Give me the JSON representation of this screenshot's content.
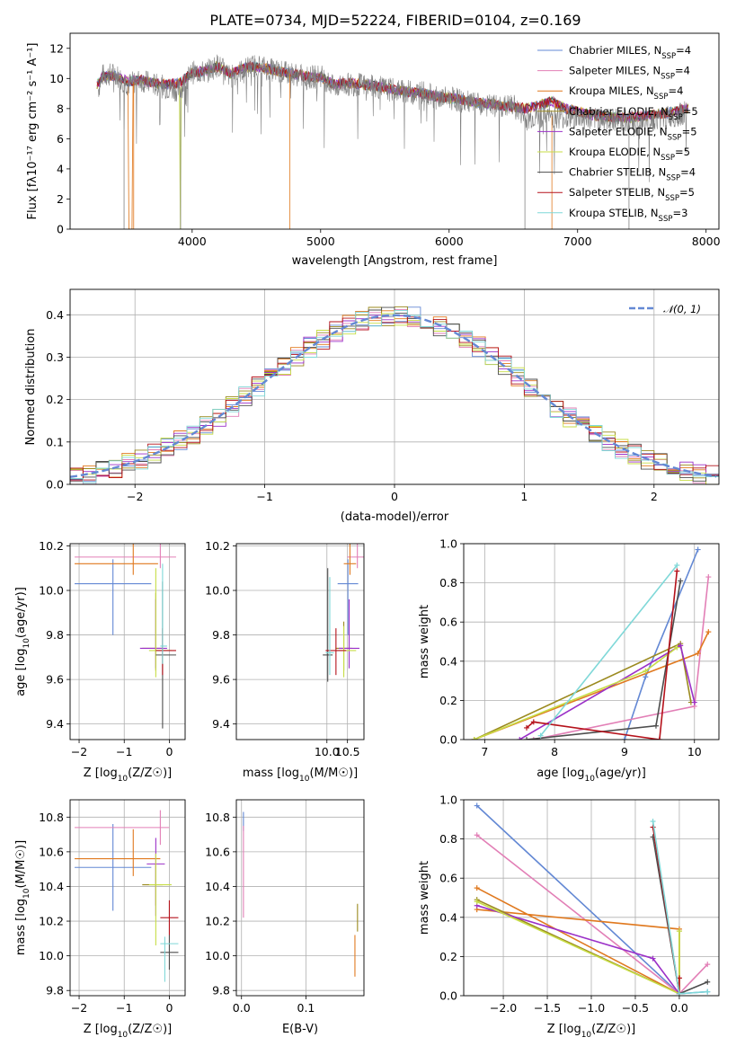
{
  "title": "PLATE=0734, MJD=52224, FIBERID=0104, z=0.169",
  "colors": [
    "#6388d4",
    "#e27fb6",
    "#e0791f",
    "#9b8a1f",
    "#9b30c8",
    "#c7dd46",
    "#4d4d4d",
    "#b5121b",
    "#7fd8d8"
  ],
  "legend": [
    {
      "prefix": "Chabrier MILES, N",
      "sub": "SSP",
      "suffix": "=4"
    },
    {
      "prefix": "Salpeter MILES, N",
      "sub": "SSP",
      "suffix": "=4"
    },
    {
      "prefix": "Kroupa MILES, N",
      "sub": "SSP",
      "suffix": "=4"
    },
    {
      "prefix": "Chabrier ELODIE, N",
      "sub": "SSP",
      "suffix": "=5"
    },
    {
      "prefix": "Salpeter ELODIE, N",
      "sub": "SSP",
      "suffix": "=5"
    },
    {
      "prefix": "Kroupa ELODIE, N",
      "sub": "SSP",
      "suffix": "=5"
    },
    {
      "prefix": "Chabrier STELIB, N",
      "sub": "SSP",
      "suffix": "=4"
    },
    {
      "prefix": "Salpeter STELIB, N",
      "sub": "SSP",
      "suffix": "=5"
    },
    {
      "prefix": "Kroupa STELIB, N",
      "sub": "SSP",
      "suffix": "=3"
    }
  ],
  "normal_legend": "𝒩(0, 1)",
  "chart_data": [
    {
      "id": "spectrum",
      "type": "line",
      "xlabel": "wavelength [Angstrom, rest frame]",
      "ylabel": "Flux [fλ10⁻¹⁷ erg cm⁻² s⁻¹ A⁻¹]",
      "xlim": [
        3050,
        8100
      ],
      "ylim": [
        0,
        13
      ],
      "xticks": [
        4000,
        5000,
        6000,
        7000,
        8000
      ],
      "yticks": [
        0,
        2,
        4,
        6,
        8,
        10,
        12
      ],
      "grid": false,
      "legend_position": "right",
      "data_continuum": [
        [
          3270,
          9.3
        ],
        [
          3300,
          10.2
        ],
        [
          3400,
          10.3
        ],
        [
          3500,
          9.6
        ],
        [
          3600,
          9.9
        ],
        [
          3700,
          9.6
        ],
        [
          3800,
          9.4
        ],
        [
          3900,
          9.2
        ],
        [
          4000,
          10.4
        ],
        [
          4100,
          10.4
        ],
        [
          4200,
          10.9
        ],
        [
          4300,
          10.1
        ],
        [
          4400,
          10.6
        ],
        [
          4500,
          10.9
        ],
        [
          4600,
          10.6
        ],
        [
          4700,
          10.4
        ],
        [
          4800,
          10.3
        ],
        [
          4900,
          10.0
        ],
        [
          5000,
          10.2
        ],
        [
          5100,
          9.4
        ],
        [
          5200,
          9.6
        ],
        [
          5300,
          9.6
        ],
        [
          5400,
          9.5
        ],
        [
          5500,
          9.3
        ],
        [
          5600,
          9.2
        ],
        [
          5700,
          9.1
        ],
        [
          5800,
          9.1
        ],
        [
          5900,
          8.7
        ],
        [
          6000,
          8.7
        ],
        [
          6100,
          8.5
        ],
        [
          6200,
          8.3
        ],
        [
          6300,
          8.2
        ],
        [
          6400,
          8.1
        ],
        [
          6500,
          8.2
        ],
        [
          6600,
          7.3
        ],
        [
          6700,
          7.5
        ],
        [
          6800,
          7.5
        ],
        [
          6900,
          7.4
        ],
        [
          7000,
          7.4
        ],
        [
          7100,
          7.3
        ],
        [
          7200,
          7.2
        ],
        [
          7300,
          7.3
        ],
        [
          7400,
          7.2
        ],
        [
          7500,
          7.0
        ],
        [
          7600,
          7.3
        ],
        [
          7700,
          7.4
        ],
        [
          7800,
          7.6
        ],
        [
          7850,
          7.8
        ]
      ],
      "model_continuum": [
        [
          3260,
          9.6
        ],
        [
          3300,
          10.1
        ],
        [
          3400,
          10.2
        ],
        [
          3500,
          9.8
        ],
        [
          3600,
          9.9
        ],
        [
          3700,
          9.7
        ],
        [
          3800,
          9.6
        ],
        [
          3900,
          9.7
        ],
        [
          4000,
          10.4
        ],
        [
          4100,
          10.5
        ],
        [
          4200,
          10.8
        ],
        [
          4300,
          10.3
        ],
        [
          4400,
          10.7
        ],
        [
          4500,
          10.8
        ],
        [
          4600,
          10.6
        ],
        [
          4700,
          10.4
        ],
        [
          4800,
          10.3
        ],
        [
          4900,
          10.1
        ],
        [
          5000,
          10.1
        ],
        [
          5100,
          9.6
        ],
        [
          5200,
          9.7
        ],
        [
          5300,
          9.6
        ],
        [
          5400,
          9.5
        ],
        [
          5500,
          9.4
        ],
        [
          5600,
          9.2
        ],
        [
          5700,
          9.1
        ],
        [
          5800,
          9.0
        ],
        [
          5900,
          8.8
        ],
        [
          6000,
          8.7
        ],
        [
          6100,
          8.6
        ],
        [
          6200,
          8.4
        ],
        [
          6300,
          8.3
        ],
        [
          6400,
          8.2
        ],
        [
          6500,
          8.1
        ],
        [
          6600,
          8.0
        ],
        [
          6700,
          8.2
        ],
        [
          6800,
          8.5
        ],
        [
          6900,
          8.0
        ],
        [
          7000,
          7.8
        ],
        [
          7100,
          7.6
        ],
        [
          7200,
          7.5
        ],
        [
          7300,
          7.4
        ],
        [
          7400,
          7.4
        ],
        [
          7500,
          7.5
        ],
        [
          7600,
          7.6
        ],
        [
          7700,
          7.7
        ],
        [
          7800,
          7.9
        ],
        [
          7850,
          8.0
        ]
      ]
    },
    {
      "id": "residuals",
      "type": "line",
      "xlabel": "(data-model)/error",
      "ylabel": "Normed distribution",
      "xlim": [
        -2.5,
        2.5
      ],
      "ylim": [
        0,
        0.46
      ],
      "xticks": [
        -2,
        -1,
        0,
        1,
        2
      ],
      "yticks": [
        0.0,
        0.1,
        0.2,
        0.3,
        0.4
      ],
      "grid": true,
      "legend_position": "upper right",
      "bin_width": 0.1
    },
    {
      "id": "age_vs_Z",
      "type": "scatter",
      "xlabel_main": "Z [log",
      "xlabel_sub": "10",
      "xlabel_rest": "(Z/Z☉)]",
      "ylabel_main": "age  [log",
      "ylabel_sub": "10",
      "ylabel_rest": "(age/yr)]",
      "xlim": [
        -2.2,
        0.35
      ],
      "ylim": [
        9.33,
        10.21
      ],
      "xticks": [
        -2,
        -1,
        0
      ],
      "yticks": [
        9.4,
        9.6,
        9.8,
        10.0,
        10.2
      ],
      "grid": true,
      "points": [
        [
          -1.25,
          10.03,
          0.85,
          0.85,
          0.23,
          0.11
        ],
        [
          -0.2,
          10.15,
          1.9,
          0.35,
          0.05,
          0.23
        ],
        [
          -0.8,
          10.12,
          1.3,
          0.55,
          0.05,
          0.19
        ],
        [
          -0.3,
          9.74,
          0.3,
          0.15,
          0.1,
          0.25
        ],
        [
          -0.3,
          9.74,
          0.35,
          0.25,
          0.09,
          0.22
        ],
        [
          -0.3,
          9.73,
          0.15,
          0.35,
          0.12,
          0.37
        ],
        [
          -0.15,
          9.71,
          0.15,
          0.3,
          0.33,
          0.33
        ],
        [
          -0.15,
          9.73,
          0.15,
          0.3,
          0.11,
          0.1
        ],
        [
          -0.15,
          9.75,
          0.05,
          0.1,
          0.08,
          0.37
        ]
      ]
    },
    {
      "id": "age_vs_mass",
      "type": "scatter",
      "xlabel_main": "mass [log",
      "xlabel_sub": "10",
      "xlabel_rest": "(M/M☉)]",
      "ylabel_main": "",
      "ylabel_sub": "",
      "ylabel_rest": "",
      "xlim": [
        7.8,
        10.9
      ],
      "ylim": [
        9.33,
        10.21
      ],
      "xticks": [
        10.0,
        10.5
      ],
      "yticks": [
        9.4,
        9.6,
        9.8,
        10.0,
        10.2
      ],
      "grid": true,
      "points": [
        [
          10.51,
          10.03,
          0.25,
          0.25,
          0.23,
          0.11
        ],
        [
          10.74,
          10.15,
          0.25,
          0.25,
          0.05,
          0.32
        ],
        [
          10.56,
          10.12,
          0.15,
          0.15,
          0.05,
          0.25
        ],
        [
          10.41,
          9.74,
          0.2,
          0.2,
          0.1,
          0.12
        ],
        [
          10.54,
          9.74,
          0.25,
          0.25,
          0.09,
          0.22
        ],
        [
          10.41,
          9.73,
          0.15,
          0.3,
          0.12,
          0.11
        ],
        [
          10.02,
          9.71,
          0.12,
          0.12,
          0.12,
          0.39
        ],
        [
          10.22,
          9.73,
          0.25,
          0.25,
          0.11,
          0.1
        ],
        [
          10.07,
          9.72,
          0.1,
          0.1,
          0.1,
          0.34
        ]
      ]
    },
    {
      "id": "weight_vs_age",
      "type": "line",
      "xlabel_main": "age  [log",
      "xlabel_sub": "10",
      "xlabel_rest": "(age/yr)]",
      "ylabel": "mass weight",
      "xlim": [
        6.7,
        10.35
      ],
      "ylim": [
        0,
        1.0
      ],
      "xticks": [
        7,
        8,
        9,
        10
      ],
      "yticks": [
        0.0,
        0.2,
        0.4,
        0.6,
        0.8,
        1.0
      ],
      "grid": true,
      "series": [
        [
          [
            9.0,
            0.0
          ],
          [
            9.3,
            0.32
          ],
          [
            10.05,
            0.97
          ]
        ],
        [
          [
            7.7,
            0.0
          ],
          [
            10.0,
            0.17
          ],
          [
            10.2,
            0.83
          ]
        ],
        [
          [
            6.85,
            0.0
          ],
          [
            10.05,
            0.44
          ],
          [
            10.2,
            0.55
          ]
        ],
        [
          [
            6.85,
            0.0
          ],
          [
            9.8,
            0.49
          ],
          [
            9.95,
            0.19
          ]
        ],
        [
          [
            7.5,
            0.0
          ],
          [
            9.8,
            0.48
          ],
          [
            10.0,
            0.19
          ]
        ],
        [
          [
            6.85,
            0.0
          ],
          [
            9.3,
            0.35
          ],
          [
            9.75,
            0.47
          ]
        ],
        [
          [
            7.6,
            0.0
          ],
          [
            9.45,
            0.07
          ],
          [
            9.8,
            0.81
          ]
        ],
        [
          [
            7.6,
            0.06
          ],
          [
            7.7,
            0.09
          ],
          [
            9.5,
            0.0
          ],
          [
            9.75,
            0.86
          ]
        ],
        [
          [
            7.8,
            0.02
          ],
          [
            9.75,
            0.89
          ]
        ]
      ]
    },
    {
      "id": "mass_vs_Z",
      "type": "scatter",
      "xlabel_main": "Z [log",
      "xlabel_sub": "10",
      "xlabel_rest": "(Z/Z☉)]",
      "ylabel_main": "mass [log",
      "ylabel_sub": "10",
      "ylabel_rest": "(M/M☉)]",
      "xlim": [
        -2.2,
        0.35
      ],
      "ylim": [
        9.77,
        10.9
      ],
      "xticks": [
        -2,
        -1,
        0
      ],
      "yticks": [
        9.8,
        10.0,
        10.2,
        10.4,
        10.6,
        10.8
      ],
      "grid": true,
      "points": [
        [
          -1.25,
          10.51,
          0.85,
          0.85,
          0.25,
          0.25
        ],
        [
          -0.2,
          10.74,
          1.9,
          0.2,
          0.1,
          0.1
        ],
        [
          -0.8,
          10.56,
          1.3,
          0.6,
          0.1,
          0.17
        ],
        [
          -0.3,
          10.41,
          0.3,
          0.15,
          0.12,
          0.12
        ],
        [
          -0.3,
          10.53,
          0.2,
          0.2,
          0.3,
          0.15
        ],
        [
          -0.3,
          10.41,
          0.15,
          0.35,
          0.35,
          0.18
        ],
        [
          0.0,
          10.02,
          0.2,
          0.2,
          0.1,
          0.1
        ],
        [
          0.0,
          10.22,
          0.2,
          0.2,
          0.1,
          0.1
        ],
        [
          -0.1,
          10.07,
          0.1,
          0.3,
          0.22,
          0.04
        ]
      ]
    },
    {
      "id": "mass_vs_ebv",
      "type": "scatter",
      "xlabel": "E(B-V)",
      "xlim": [
        -0.008,
        0.19
      ],
      "ylim": [
        9.77,
        10.9
      ],
      "xticks": [
        0.0,
        0.1
      ],
      "yticks": [
        9.8,
        10.0,
        10.2,
        10.4,
        10.6,
        10.8
      ],
      "grid": true,
      "points": [
        [
          0.003,
          10.78,
          0,
          0,
          0.06,
          0.05
        ],
        [
          0.003,
          10.5,
          0,
          0,
          0.28,
          0.25
        ],
        [
          0.176,
          10.0,
          0,
          0,
          0.12,
          0.12
        ],
        [
          0.18,
          10.22,
          0,
          0,
          0.08,
          0.08
        ]
      ]
    },
    {
      "id": "weight_vs_Z",
      "type": "line",
      "xlabel_main": "Z [log",
      "xlabel_sub": "10",
      "xlabel_rest": "(Z/Z☉)]",
      "ylabel": "mass weight",
      "xlim": [
        -2.45,
        0.45
      ],
      "ylim": [
        0,
        1.0
      ],
      "xticks": [
        -2.0,
        -1.5,
        -1.0,
        -0.5,
        0.0
      ],
      "yticks": [
        0.0,
        0.2,
        0.4,
        0.6,
        0.8,
        1.0
      ],
      "grid": true,
      "series": [
        [
          [
            -2.3,
            0.97
          ],
          [
            0.0,
            0.01
          ],
          [
            0.32,
            0.02
          ]
        ],
        [
          [
            -2.3,
            0.82
          ],
          [
            0.0,
            0.01
          ],
          [
            0.32,
            0.16
          ]
        ],
        [
          [
            -2.3,
            0.55
          ],
          [
            0.0,
            0.01
          ],
          [
            0.0,
            0.34
          ],
          [
            -2.3,
            0.44
          ]
        ],
        [
          [
            -2.3,
            0.49
          ],
          [
            0.0,
            0.01
          ],
          [
            0.0,
            0.33
          ]
        ],
        [
          [
            -2.3,
            0.46
          ],
          [
            -0.3,
            0.19
          ],
          [
            0.0,
            0.01
          ]
        ],
        [
          [
            -2.3,
            0.48
          ],
          [
            0.0,
            0.01
          ],
          [
            0.0,
            0.33
          ]
        ],
        [
          [
            -0.3,
            0.81
          ],
          [
            0.0,
            0.01
          ],
          [
            0.32,
            0.07
          ]
        ],
        [
          [
            -0.3,
            0.86
          ],
          [
            0.0,
            0.01
          ],
          [
            0.0,
            0.09
          ]
        ],
        [
          [
            -0.3,
            0.89
          ],
          [
            0.0,
            0.01
          ],
          [
            0.32,
            0.02
          ]
        ]
      ]
    }
  ]
}
